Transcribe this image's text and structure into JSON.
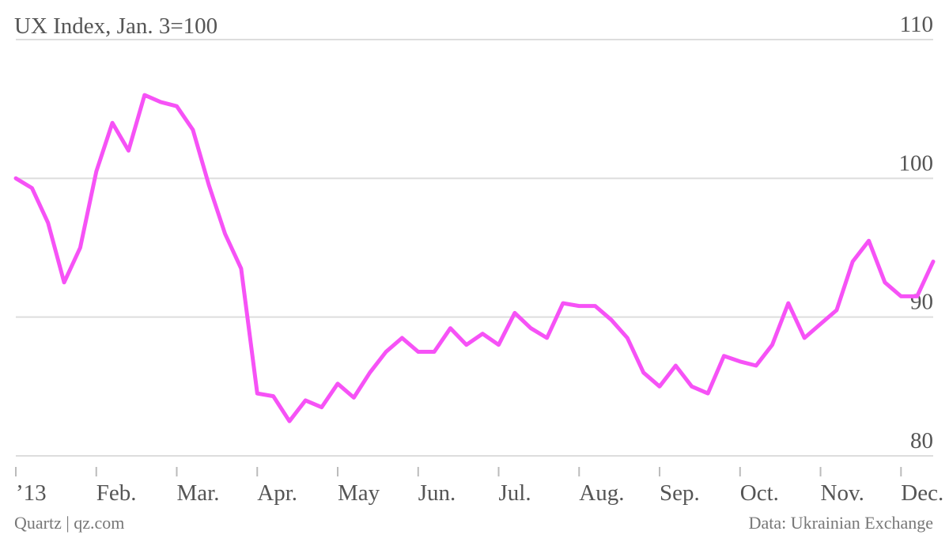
{
  "chart_data": {
    "type": "line",
    "title": "UX Index, Jan. 3=100",
    "source": "Data: Ukrainian Exchange",
    "credit": "Quartz | qz.com",
    "categories": [
      "’13",
      null,
      null,
      null,
      null,
      "Feb.",
      null,
      null,
      null,
      null,
      "Mar.",
      null,
      null,
      null,
      null,
      "Apr.",
      null,
      null,
      null,
      null,
      "May",
      null,
      null,
      null,
      null,
      "Jun.",
      null,
      null,
      null,
      null,
      "Jul.",
      null,
      null,
      null,
      null,
      "Aug.",
      null,
      null,
      null,
      null,
      "Sep.",
      null,
      null,
      null,
      null,
      "Oct.",
      null,
      null,
      null,
      null,
      "Nov.",
      null,
      null,
      null,
      null,
      "Dec.",
      null,
      null
    ],
    "series": [
      {
        "name": "UX Index",
        "color": "#f652f6",
        "values": [
          100,
          99.3,
          96.8,
          92.5,
          95,
          100.5,
          104,
          102,
          106,
          105.5,
          105.2,
          103.5,
          99.5,
          96,
          93.5,
          84.5,
          84.3,
          82.5,
          84,
          83.5,
          85.2,
          84.2,
          86,
          87.5,
          88.5,
          87.5,
          87.5,
          89.2,
          88,
          88.8,
          88,
          90.3,
          89.2,
          88.5,
          91,
          90.8,
          90.8,
          89.8,
          88.5,
          86,
          85,
          86.5,
          85,
          84.5,
          87.2,
          86.8,
          86.5,
          88,
          91,
          88.5,
          89.5,
          90.5,
          94,
          95.5,
          92.5,
          91.5,
          91.5,
          94
        ]
      }
    ],
    "ylim": [
      80,
      110
    ],
    "yticks": [
      80,
      90,
      100,
      110
    ],
    "grid": true
  }
}
